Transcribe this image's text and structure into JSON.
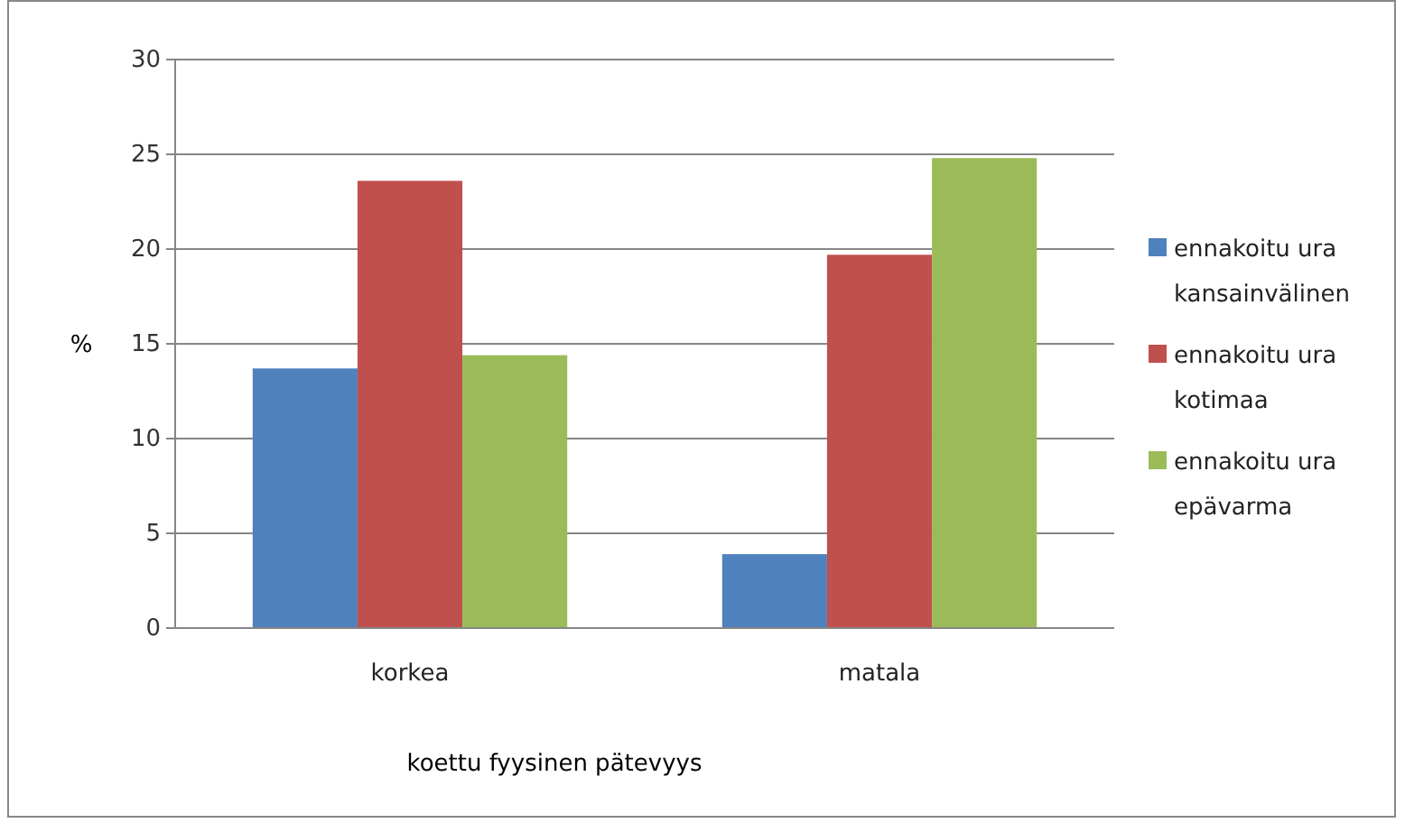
{
  "chart_data": {
    "type": "bar",
    "xlabel": "koettu fyysinen pätevyys",
    "ylabel": "%",
    "categories": [
      "korkea",
      "matala"
    ],
    "series": [
      {
        "name": "ennakoitu ura kansainvälinen",
        "color": "#4f81bd",
        "values": [
          13.7,
          3.9
        ]
      },
      {
        "name": "ennakoitu ura kotimaa",
        "color": "#c0504d",
        "values": [
          23.6,
          19.7
        ]
      },
      {
        "name": "ennakoitu ura epävarma",
        "color": "#9bbb59",
        "values": [
          14.4,
          24.8
        ]
      }
    ],
    "ylim": [
      0,
      30
    ],
    "yticks": [
      0,
      5,
      10,
      15,
      20,
      25,
      30
    ],
    "grid": "y",
    "legend": "right"
  }
}
